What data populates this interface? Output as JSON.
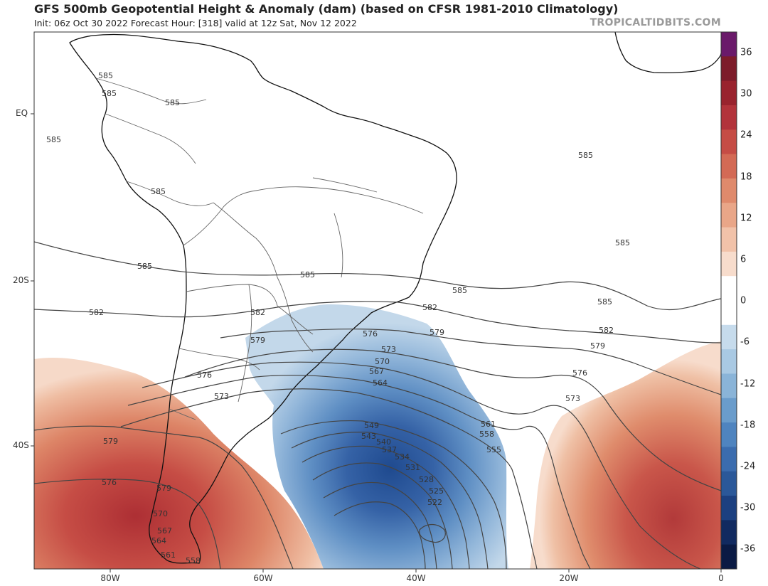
{
  "header": {
    "title": "GFS 500mb Geopotential Height & Anomaly (dam) (based on CFSR 1981-2010 Climatology)",
    "subtitle": "Init: 06z Oct 30 2022   Forecast Hour: [318]   valid at 12z Sat, Nov 12 2022",
    "brand": "TROPICALTIDBITS.COM"
  },
  "axes": {
    "lat_labels": [
      "EQ",
      "20S",
      "40S"
    ],
    "lon_labels": [
      "80W",
      "60W",
      "40W",
      "20W",
      "0"
    ]
  },
  "colorbar": {
    "labels": [
      "36",
      "30",
      "24",
      "18",
      "12",
      "6",
      "0",
      "-6",
      "-12",
      "-18",
      "-24",
      "-30",
      "-36"
    ],
    "colors": [
      "#6a1a6a",
      "#7d1c2a",
      "#99232e",
      "#b2333b",
      "#c54c45",
      "#d36a55",
      "#df8a6c",
      "#e9a688",
      "#f1c2a9",
      "#f7dccc",
      "#ffffff",
      "#ffffff",
      "#c6dbec",
      "#a9c9e3",
      "#8ab4d8",
      "#6a9ccb",
      "#4f84bf",
      "#3b6cae",
      "#2b5899",
      "#1c4080",
      "#112a60",
      "#0a1a44"
    ]
  },
  "contour_labels": [
    "585",
    "585",
    "585",
    "585",
    "585",
    "585",
    "585",
    "585",
    "585",
    "585",
    "585",
    "582",
    "582",
    "582",
    "582",
    "579",
    "579",
    "579",
    "579",
    "579",
    "576",
    "576",
    "576",
    "576",
    "573",
    "573",
    "573",
    "570",
    "570",
    "567",
    "567",
    "564",
    "564",
    "561",
    "561",
    "558",
    "558",
    "555",
    "549",
    "543",
    "540",
    "537",
    "534",
    "531",
    "528",
    "525",
    "522"
  ],
  "colors": {
    "contour": "#444444",
    "border": "#555555",
    "coast": "#111111"
  }
}
